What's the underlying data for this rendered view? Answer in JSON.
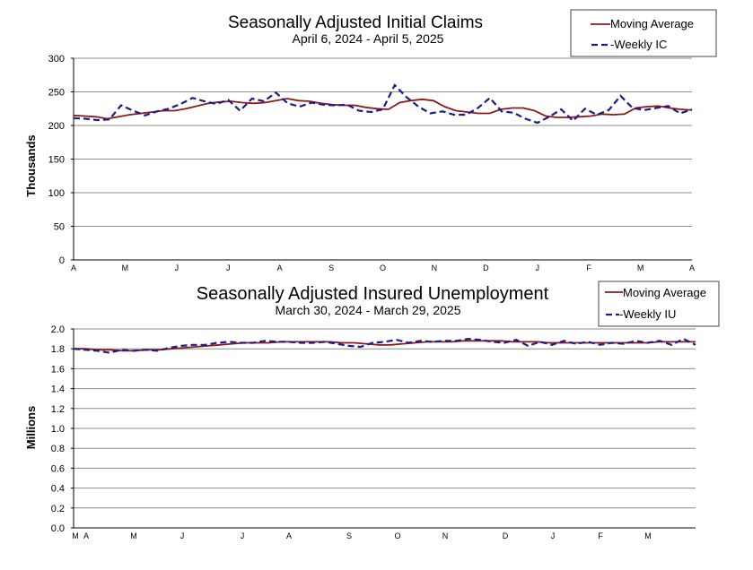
{
  "chart_data": [
    {
      "type": "line",
      "title": "Seasonally Adjusted Initial Claims",
      "subtitle": "April 6, 2024 - April 5, 2025",
      "ylabel": "Thousands",
      "xlabel": "",
      "ylim": [
        0,
        300
      ],
      "yticks": [
        "0",
        "50",
        "100",
        "150",
        "200",
        "250",
        "300"
      ],
      "grid": true,
      "legend_position": "top-right",
      "x_month_labels": [
        "A",
        "M",
        "J",
        "J",
        "A",
        "S",
        "O",
        "N",
        "D",
        "J",
        "F",
        "M",
        "A"
      ],
      "series": [
        {
          "name": "Moving Average",
          "color": "#8B1A1A",
          "style": "solid",
          "values": [
            215,
            214,
            213,
            210,
            213,
            216,
            218,
            220,
            222,
            222,
            225,
            229,
            233,
            235,
            236,
            234,
            233,
            234,
            237,
            240,
            237,
            236,
            233,
            231,
            230,
            230,
            227,
            225,
            224,
            234,
            237,
            239,
            237,
            228,
            222,
            220,
            218,
            218,
            224,
            226,
            226,
            222,
            214,
            212,
            212,
            213,
            214,
            217,
            216,
            217,
            226,
            228,
            229,
            226,
            224,
            223
          ]
        },
        {
          "name": "Weekly IC",
          "color": "#1C1C8C",
          "style": "dashed",
          "values": [
            211,
            210,
            208,
            209,
            230,
            222,
            215,
            221,
            225,
            232,
            241,
            236,
            232,
            238,
            222,
            240,
            236,
            249,
            233,
            228,
            234,
            231,
            230,
            231,
            222,
            220,
            224,
            260,
            242,
            228,
            218,
            221,
            216,
            216,
            226,
            241,
            221,
            219,
            210,
            204,
            213,
            224,
            207,
            225,
            216,
            223,
            244,
            226,
            223,
            226,
            229,
            218,
            224
          ]
        }
      ]
    },
    {
      "type": "line",
      "title": "Seasonally Adjusted Insured Unemployment",
      "subtitle": "March 30, 2024 - March 29, 2025",
      "ylabel": "Millions",
      "xlabel": "",
      "ylim": [
        0.0,
        2.0
      ],
      "yticks": [
        "0.0",
        "0.2",
        "0.4",
        "0.6",
        "0.8",
        "1.0",
        "1.2",
        "1.4",
        "1.6",
        "1.8",
        "2.0"
      ],
      "grid": true,
      "legend_position": "top-right",
      "x_month_labels": [
        "M",
        "A",
        "M",
        "J",
        "J",
        "A",
        "S",
        "O",
        "N",
        "D",
        "J",
        "F",
        "M"
      ],
      "series": [
        {
          "name": "Moving Average",
          "color": "#8B1A1A",
          "style": "solid",
          "values": [
            1.8,
            1.8,
            1.79,
            1.79,
            1.78,
            1.78,
            1.79,
            1.79,
            1.8,
            1.81,
            1.82,
            1.83,
            1.84,
            1.85,
            1.86,
            1.86,
            1.86,
            1.87,
            1.87,
            1.87,
            1.87,
            1.87,
            1.86,
            1.86,
            1.85,
            1.84,
            1.84,
            1.85,
            1.86,
            1.87,
            1.87,
            1.87,
            1.88,
            1.88,
            1.88,
            1.88,
            1.87,
            1.87,
            1.87,
            1.86,
            1.86,
            1.86,
            1.86,
            1.86,
            1.86,
            1.86,
            1.86,
            1.86,
            1.87,
            1.87,
            1.87,
            1.87
          ]
        },
        {
          "name": "Weekly IU",
          "color": "#1C1C8C",
          "style": "dashed",
          "values": [
            1.8,
            1.79,
            1.78,
            1.76,
            1.79,
            1.78,
            1.79,
            1.78,
            1.81,
            1.83,
            1.84,
            1.84,
            1.86,
            1.87,
            1.86,
            1.86,
            1.88,
            1.87,
            1.87,
            1.86,
            1.86,
            1.87,
            1.85,
            1.83,
            1.82,
            1.86,
            1.87,
            1.89,
            1.86,
            1.88,
            1.87,
            1.88,
            1.88,
            1.9,
            1.89,
            1.87,
            1.86,
            1.89,
            1.83,
            1.87,
            1.84,
            1.88,
            1.85,
            1.87,
            1.84,
            1.86,
            1.85,
            1.88,
            1.86,
            1.88,
            1.84,
            1.9,
            1.84
          ]
        }
      ]
    }
  ]
}
